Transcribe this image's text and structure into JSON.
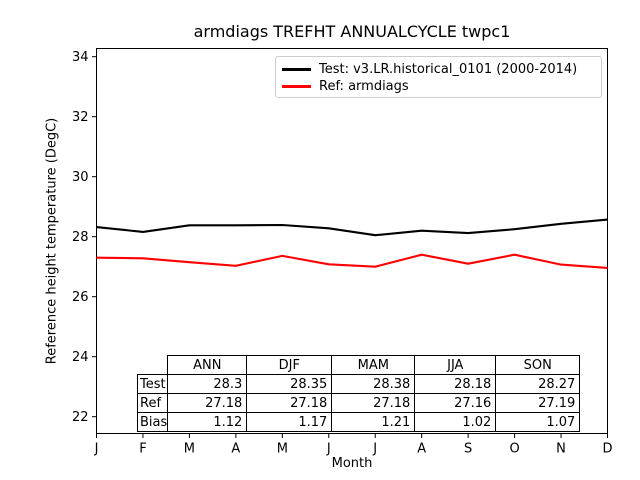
{
  "chart_data": {
    "type": "line",
    "title": "armdiags TREFHT ANNUALCYCLE twpc1",
    "xlabel": "Month",
    "ylabel": "Reference height temperature (DegC)",
    "x_tick_labels": [
      "J",
      "F",
      "M",
      "A",
      "M",
      "J",
      "J",
      "A",
      "S",
      "O",
      "N",
      "D"
    ],
    "y_ticks": [
      22,
      24,
      26,
      28,
      30,
      32,
      34
    ],
    "ylim": [
      21.44,
      34.27
    ],
    "xlim": [
      0,
      11
    ],
    "grid": false,
    "legend_position": "upper right inside plot",
    "series": [
      {
        "name": "Test: v3.LR.historical_0101 (2000-2014)",
        "color": "#000000",
        "values": [
          28.32,
          28.16,
          28.38,
          28.38,
          28.39,
          28.28,
          28.05,
          28.2,
          28.12,
          28.25,
          28.43,
          28.57
        ]
      },
      {
        "name": "Ref: armdiags",
        "color": "#ff0000",
        "values": [
          27.3,
          27.28,
          27.15,
          27.03,
          27.36,
          27.08,
          27.0,
          27.4,
          27.1,
          27.4,
          27.07,
          26.96
        ]
      }
    ],
    "table": {
      "col_headers": [
        "ANN",
        "DJF",
        "MAM",
        "JJA",
        "SON"
      ],
      "rows": [
        {
          "label": "Test",
          "values": [
            "28.3",
            "28.35",
            "28.38",
            "28.18",
            "28.27"
          ]
        },
        {
          "label": "Ref",
          "values": [
            "27.18",
            "27.18",
            "27.18",
            "27.16",
            "27.19"
          ]
        },
        {
          "label": "Bias",
          "values": [
            "1.12",
            "1.17",
            "1.21",
            "1.02",
            "1.07"
          ]
        }
      ]
    }
  }
}
